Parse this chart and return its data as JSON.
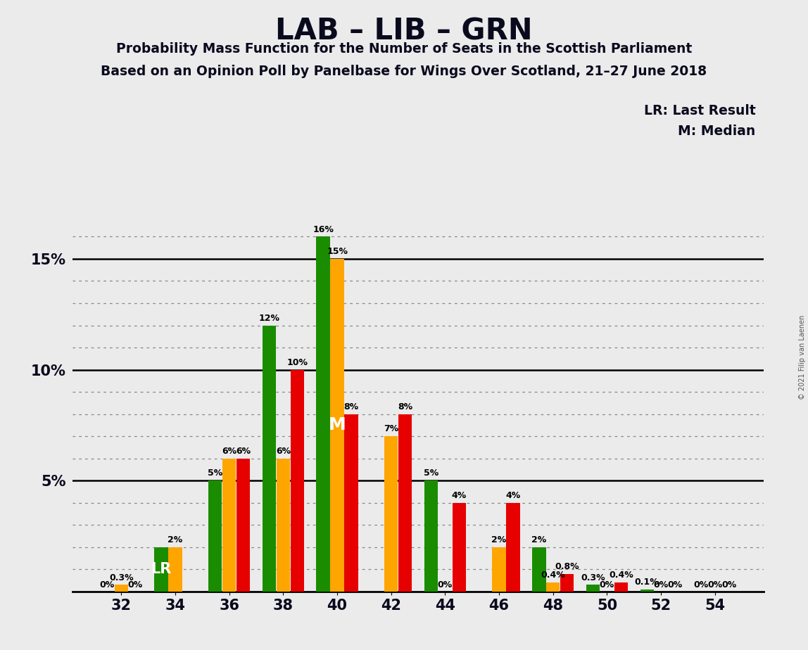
{
  "title": "LAB – LIB – GRN",
  "subtitle1": "Probability Mass Function for the Number of Seats in the Scottish Parliament",
  "subtitle2": "Based on an Opinion Poll by Panelbase for Wings Over Scotland, 21–27 June 2018",
  "legend_lr": "LR: Last Result",
  "legend_m": "M: Median",
  "copyright": "© 2021 Filip van Laenen",
  "x_seats": [
    32,
    34,
    36,
    38,
    40,
    42,
    44,
    46,
    48,
    50,
    52,
    54
  ],
  "lab_values": [
    0.0,
    0.0,
    6.0,
    10.0,
    8.0,
    8.0,
    4.0,
    4.0,
    0.8,
    0.4,
    0.0,
    0.0
  ],
  "lib_values": [
    0.3,
    2.0,
    6.0,
    6.0,
    15.0,
    7.0,
    0.0,
    2.0,
    0.4,
    0.0,
    0.0,
    0.0
  ],
  "grn_values": [
    0.0,
    2.0,
    5.0,
    12.0,
    16.0,
    0.0,
    5.0,
    0.0,
    2.0,
    0.3,
    0.1,
    0.0
  ],
  "lab_labels": [
    "0%",
    "",
    "6%",
    "10%",
    "8%",
    "8%",
    "4%",
    "4%",
    "0.8%",
    "0.4%",
    "0%",
    "0%"
  ],
  "lib_labels": [
    "0.3%",
    "2%",
    "6%",
    "6%",
    "15%",
    "7%",
    "0%",
    "2%",
    "0.4%",
    "0%",
    "0%",
    "0%"
  ],
  "grn_labels": [
    "0%",
    "",
    "5%",
    "12%",
    "16%",
    "",
    "5%",
    "",
    "2%",
    "0.3%",
    "0.1%",
    "0%"
  ],
  "lab_color": "#e60000",
  "lib_color": "#ffa500",
  "grn_color": "#1a8c00",
  "bg_color": "#ebebeb",
  "lr_seat": 34,
  "median_seat": 40,
  "ylim": [
    0,
    17
  ],
  "bar_width": 0.52,
  "bar_offsets": [
    -0.52,
    0.0,
    0.52
  ]
}
